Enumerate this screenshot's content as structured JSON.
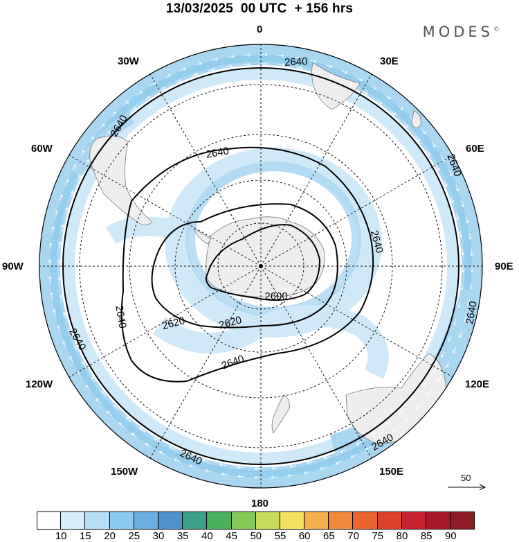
{
  "title": "13/03/2025  00 UTC  + 156 hrs",
  "logo": {
    "text": "MODES",
    "mark": "©"
  },
  "longitude_labels": {
    "deg0": "0",
    "deg30E": "30E",
    "deg60E": "60E",
    "deg90E": "90E",
    "deg120E": "120E",
    "deg150E": "150E",
    "deg180": "180",
    "deg150W": "150W",
    "deg120W": "120W",
    "deg90W": "90W",
    "deg60W": "60W",
    "deg30W": "30W"
  },
  "contour_labels": [
    "2640",
    "2640",
    "2640",
    "2640",
    "2640",
    "2640",
    "2640",
    "2640",
    "2640",
    "2640",
    "2620",
    "2620",
    "2600",
    "2640"
  ],
  "vector_reference": {
    "label": "50"
  },
  "colorbar": {
    "labels": [
      "10",
      "15",
      "20",
      "25",
      "30",
      "35",
      "40",
      "45",
      "50",
      "55",
      "60",
      "65",
      "70",
      "75",
      "80",
      "85",
      "90"
    ],
    "colors": [
      "#ffffff",
      "#d6eefb",
      "#b5dff7",
      "#8ccbee",
      "#6caedf",
      "#4e92c9",
      "#3c9f88",
      "#49b05c",
      "#86c755",
      "#c6dc5b",
      "#f5df5f",
      "#f3b04b",
      "#ef8a3c",
      "#e86530",
      "#dc3f2c",
      "#c8232c",
      "#a9182a",
      "#8e1a24"
    ]
  },
  "colors": {
    "land": "#eeeeee",
    "wind_light": "#cfe9f8",
    "wind_medium": "#a9d6f1",
    "wind_strong": "#7dbde6",
    "contour": "#000000"
  }
}
